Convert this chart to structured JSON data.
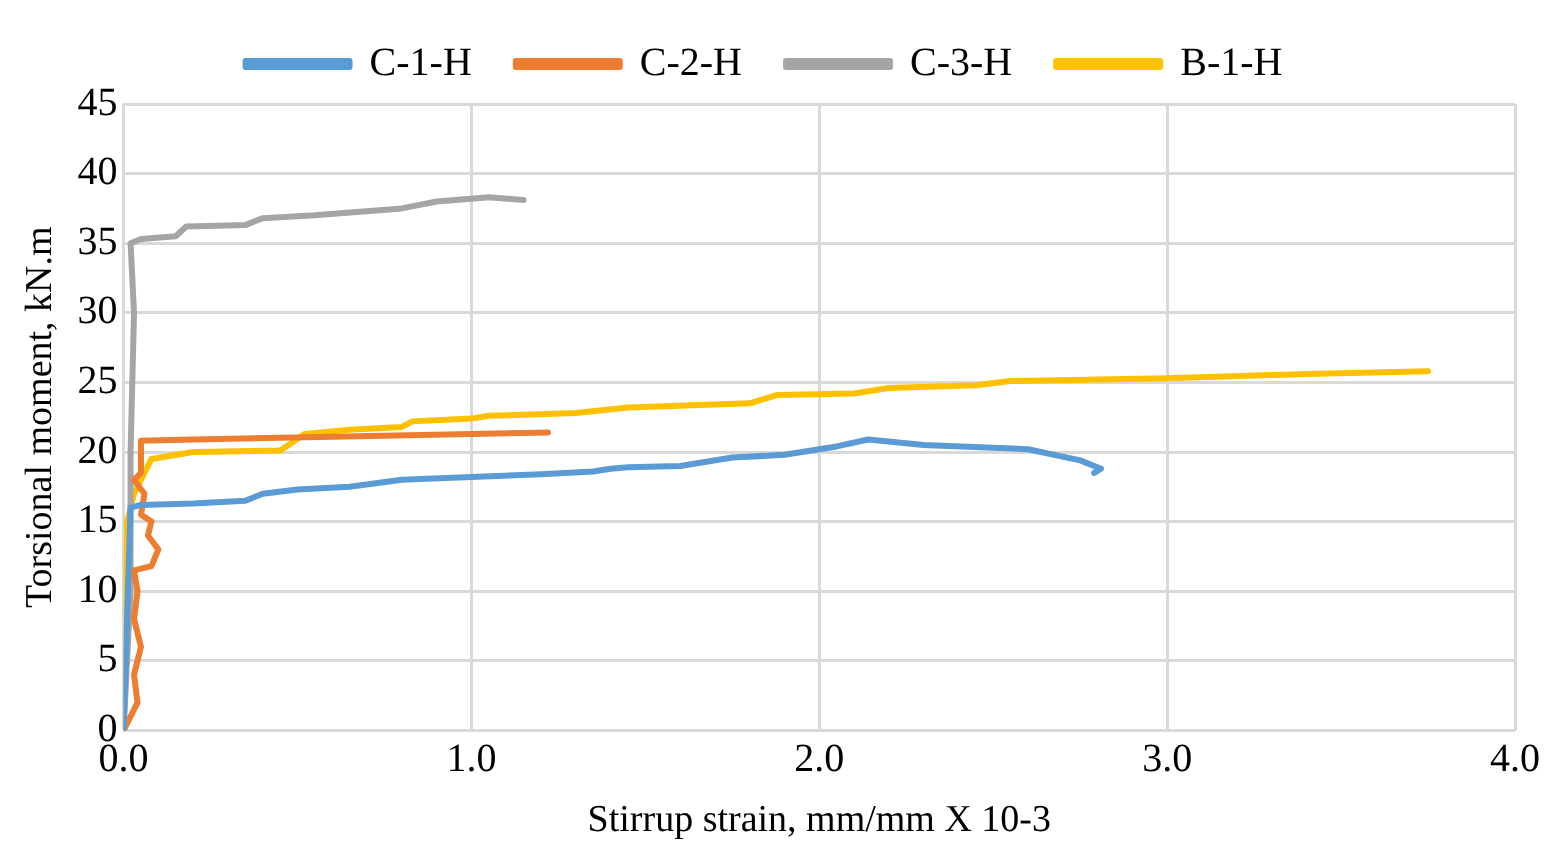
{
  "chart_data": {
    "type": "line",
    "xlabel": "Stirrup strain, mm/mm X 10-3",
    "ylabel": "Torsional moment, kN.m",
    "xlim": [
      0,
      4
    ],
    "xticks": [
      {
        "value": 0,
        "label": "0.0"
      },
      {
        "value": 1,
        "label": "1.0"
      },
      {
        "value": 2,
        "label": "2.0"
      },
      {
        "value": 3,
        "label": "3.0"
      },
      {
        "value": 4,
        "label": "4.0"
      }
    ],
    "ylim": [
      0,
      45
    ],
    "yticks": [
      0,
      5,
      10,
      15,
      20,
      25,
      30,
      35,
      40,
      45
    ],
    "grid": true,
    "legend": "top",
    "marker": "none",
    "line_style": "solid",
    "series": [
      {
        "name": "C-1-H",
        "color": "#5b9bd5",
        "x": [
          0,
          0.01,
          0.02,
          0.05,
          0.2,
          0.35,
          0.4,
          0.5,
          0.65,
          0.8,
          1.0,
          1.2,
          1.35,
          1.4,
          1.45,
          1.6,
          1.75,
          1.9,
          2.05,
          2.14,
          2.3,
          2.5,
          2.6,
          2.75,
          2.81,
          2.79
        ],
        "values": [
          0,
          8,
          16,
          16.2,
          16.3,
          16.5,
          17.0,
          17.3,
          17.5,
          18.0,
          18.2,
          18.4,
          18.6,
          18.8,
          18.9,
          19.0,
          19.6,
          19.8,
          20.4,
          20.9,
          20.5,
          20.3,
          20.2,
          19.4,
          18.8,
          18.5
        ]
      },
      {
        "name": "C-2-H",
        "color": "#ed7d31",
        "x": [
          0,
          0.04,
          0.03,
          0.05,
          0.03,
          0.04,
          0.03,
          0.08,
          0.1,
          0.07,
          0.08,
          0.05,
          0.06,
          0.03,
          0.05,
          0.05,
          0.2,
          0.6,
          1.0,
          1.22
        ],
        "values": [
          0,
          2,
          4,
          6,
          8,
          10,
          11.5,
          11.8,
          13,
          14,
          15,
          15.5,
          17,
          18,
          18.5,
          20.8,
          20.9,
          21.1,
          21.3,
          21.4
        ]
      },
      {
        "name": "C-3-H",
        "color": "#a5a5a5",
        "x": [
          0,
          0.02,
          0.02,
          0.03,
          0.02,
          0.05,
          0.15,
          0.18,
          0.35,
          0.4,
          0.55,
          0.8,
          0.9,
          1.05,
          1.15
        ],
        "values": [
          0,
          10,
          20,
          30,
          35,
          35.3,
          35.5,
          36.2,
          36.3,
          36.8,
          37.0,
          37.5,
          38.0,
          38.3,
          38.1
        ]
      },
      {
        "name": "B-1-H",
        "color": "#ffc000",
        "x": [
          0,
          0.01,
          0.03,
          0.08,
          0.2,
          0.45,
          0.48,
          0.52,
          0.65,
          0.8,
          0.83,
          1.0,
          1.05,
          1.3,
          1.45,
          1.8,
          1.88,
          2.1,
          2.2,
          2.45,
          2.55,
          3.0,
          3.4,
          3.75
        ],
        "values": [
          0,
          15,
          17,
          19.5,
          20.0,
          20.1,
          20.6,
          21.3,
          21.6,
          21.8,
          22.2,
          22.4,
          22.6,
          22.8,
          23.2,
          23.5,
          24.1,
          24.2,
          24.6,
          24.8,
          25.1,
          25.3,
          25.6,
          25.8
        ]
      }
    ]
  }
}
